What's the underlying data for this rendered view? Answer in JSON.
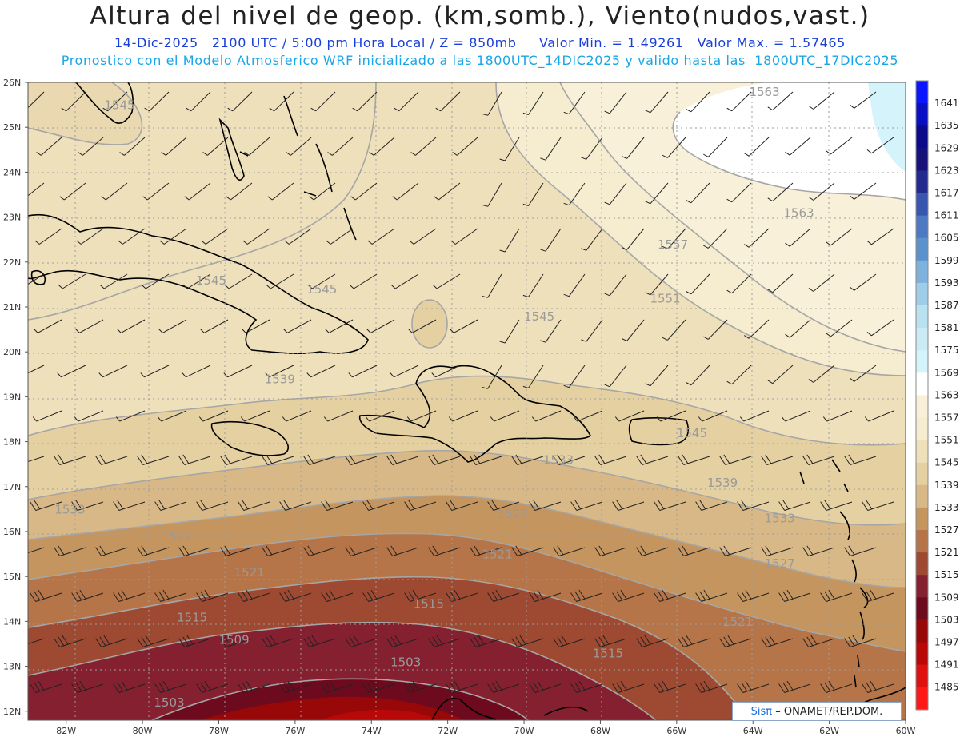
{
  "header": {
    "title": "Altura del nivel de geop. (km,somb.), Viento(nudos,vast.)",
    "subtitle_1": "14-Dic-2025   2100 UTC / 5:00 pm Hora Local / Z = 850mb     Valor Min. = 1.49261   Valor Max. = 1.57465",
    "subtitle_2": "Pronostico con el Modelo Atmosferico WRF inicializado a las 1800UTC_14DIC2025 y valido hasta las  1800UTC_17DIC2025"
  },
  "axes": {
    "lat_labels": [
      "26N",
      "25N",
      "24N",
      "23N",
      "22N",
      "21N",
      "20N",
      "19N",
      "18N",
      "17N",
      "16N",
      "15N",
      "14N",
      "13N",
      "12N"
    ],
    "lon_labels": [
      "82W",
      "80W",
      "78W",
      "76W",
      "74W",
      "72W",
      "70W",
      "68W",
      "66W",
      "64W",
      "62W",
      "60W"
    ]
  },
  "contour_labels": [
    {
      "text": "1545",
      "lon": -81.0,
      "lat": 25.4
    },
    {
      "text": "1563",
      "lon": -64.1,
      "lat": 25.7
    },
    {
      "text": "1563",
      "lon": -63.2,
      "lat": 23.0
    },
    {
      "text": "1557",
      "lon": -66.5,
      "lat": 22.3
    },
    {
      "text": "1551",
      "lon": -66.7,
      "lat": 21.1
    },
    {
      "text": "1545",
      "lon": -78.6,
      "lat": 21.5
    },
    {
      "text": "1545",
      "lon": -75.7,
      "lat": 21.3
    },
    {
      "text": "1545",
      "lon": -70.0,
      "lat": 20.7
    },
    {
      "text": "1539",
      "lon": -76.8,
      "lat": 19.3
    },
    {
      "text": "1545",
      "lon": -66.0,
      "lat": 18.1
    },
    {
      "text": "1533",
      "lon": -69.5,
      "lat": 17.5
    },
    {
      "text": "1539",
      "lon": -65.2,
      "lat": 17.0
    },
    {
      "text": "1533",
      "lon": -82.3,
      "lat": 16.4
    },
    {
      "text": "1527",
      "lon": -70.7,
      "lat": 16.3
    },
    {
      "text": "1533",
      "lon": -63.7,
      "lat": 16.2
    },
    {
      "text": "1527",
      "lon": -79.5,
      "lat": 15.8
    },
    {
      "text": "1521",
      "lon": -71.1,
      "lat": 15.4
    },
    {
      "text": "1527",
      "lon": -63.7,
      "lat": 15.2
    },
    {
      "text": "1521",
      "lon": -77.6,
      "lat": 15.0
    },
    {
      "text": "1515",
      "lon": -72.9,
      "lat": 14.3
    },
    {
      "text": "1521",
      "lon": -64.8,
      "lat": 13.9
    },
    {
      "text": "1515",
      "lon": -79.1,
      "lat": 14.0
    },
    {
      "text": "1509",
      "lon": -78.0,
      "lat": 13.5
    },
    {
      "text": "1515",
      "lon": -68.2,
      "lat": 13.2
    },
    {
      "text": "1503",
      "lon": -73.5,
      "lat": 13.0
    },
    {
      "text": "1503",
      "lon": -79.7,
      "lat": 12.1
    }
  ],
  "colorbar": {
    "levels": [
      "1641",
      "1635",
      "1629",
      "1623",
      "1617",
      "1611",
      "1605",
      "1599",
      "1593",
      "1587",
      "1581",
      "1575",
      "1569",
      "1563",
      "1557",
      "1551",
      "1545",
      "1539",
      "1533",
      "1527",
      "1521",
      "1515",
      "1509",
      "1503",
      "1497",
      "1491",
      "1485"
    ],
    "colors": [
      "#0a16ff",
      "#0b0fc4",
      "#0c0a8a",
      "#16127a",
      "#222a8f",
      "#3856b0",
      "#4d78c2",
      "#5c92cc",
      "#7eb2dd",
      "#9ecde8",
      "#b9e1f0",
      "#cbeaf4",
      "#d4f3fa",
      "#ffffff",
      "#f8f0d8",
      "#f6ecd0",
      "#efe0bc",
      "#e5d0a2",
      "#d7b886",
      "#c4955e",
      "#b57548",
      "#9e4a32",
      "#852030",
      "#6e0a1e",
      "#980808",
      "#b80808",
      "#de1010",
      "#ff1818"
    ]
  },
  "credit": {
    "brand": "Sisπ",
    "text": "– ONAMET/REP.DOM."
  }
}
